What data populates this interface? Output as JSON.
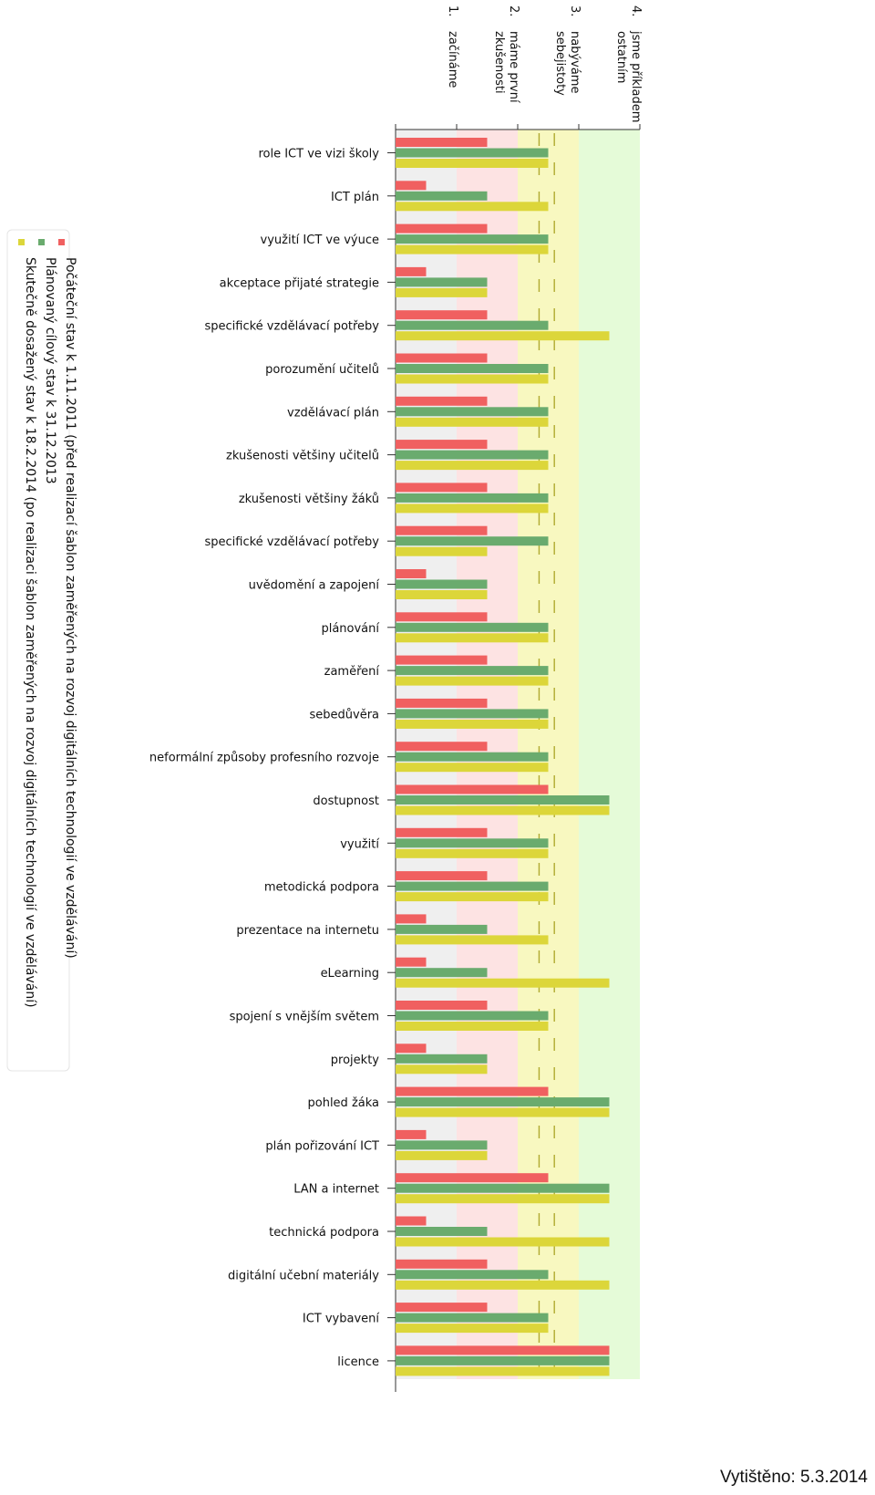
{
  "chart_data": {
    "type": "bar",
    "orientation": "horizontal",
    "levels": [
      "1. začínáme",
      "2. máme první zkušenosti",
      "3. nabýváme sebejistoty",
      "4. jsme příkladem ostatním"
    ],
    "xlim": [
      1,
      5
    ],
    "categories": [
      "role ICT ve vizi školy",
      "ICT plán",
      "využití ICT ve výuce",
      "akceptace přijaté strategie",
      "specifické vzdělávací potřeby",
      "porozumění učitelů",
      "vzdělávací plán",
      "zkušenosti většiny učitelů",
      "zkušenosti většiny žáků",
      "specifické vzdělávací potřeby",
      "uvědomění a zapojení",
      "plánování",
      "zaměření",
      "sebedůvěra",
      "neformální způsoby profesního rozvoje",
      "dostupnost",
      "využití",
      "metodická podpora",
      "prezentace na internetu",
      "eLearning",
      "spojení s vnějším světem",
      "projekty",
      "pohled žáka",
      "plán pořizování ICT",
      "LAN a internet",
      "technická podpora",
      "digitální učební materiály",
      "ICT vybavení",
      "licence"
    ],
    "series": [
      {
        "name": "Počáteční stav k 1.11.2011 (před realizací šablon zaměřených na rozvoj digitálních technologií ve vzdělávání)",
        "color": "#f06060",
        "values": [
          2.5,
          1.5,
          2.5,
          1.5,
          2.5,
          2.5,
          2.5,
          2.5,
          2.5,
          2.5,
          1.5,
          2.5,
          2.5,
          2.5,
          2.5,
          3.5,
          2.5,
          2.5,
          1.5,
          1.5,
          2.5,
          1.5,
          3.5,
          1.5,
          3.5,
          1.5,
          2.5,
          2.5,
          4.5
        ]
      },
      {
        "name": "Plánovaný cílový stav k 31.12.2013",
        "color": "#6aab6e",
        "values": [
          3.5,
          2.5,
          3.5,
          2.5,
          3.5,
          3.5,
          3.5,
          3.5,
          3.5,
          3.5,
          2.5,
          3.5,
          3.5,
          3.5,
          3.5,
          4.5,
          3.5,
          3.5,
          2.5,
          2.5,
          3.5,
          2.5,
          4.5,
          2.5,
          4.5,
          2.5,
          3.5,
          3.5,
          4.5
        ]
      },
      {
        "name": "Skutečně dosažený stav k 18.2.2014 (po realizaci šablon zaměřených na rozvoj digitálních technologií ve vzdělávání)",
        "color": "#dcd63a",
        "values": [
          3.5,
          3.5,
          3.5,
          2.5,
          4.5,
          3.5,
          3.5,
          3.5,
          3.5,
          2.5,
          2.5,
          3.5,
          3.5,
          3.5,
          3.5,
          4.5,
          3.5,
          3.5,
          3.5,
          4.5,
          3.5,
          2.5,
          4.5,
          2.5,
          4.5,
          4.5,
          4.5,
          3.5,
          4.5
        ]
      }
    ],
    "background_colors": [
      "#efefef",
      "#fde3e3",
      "#f8f8c0",
      "#e5fbd8"
    ],
    "divider_color": "#b0aa30"
  },
  "footer": {
    "printed": "Vytištěno: 5.3.2014"
  }
}
